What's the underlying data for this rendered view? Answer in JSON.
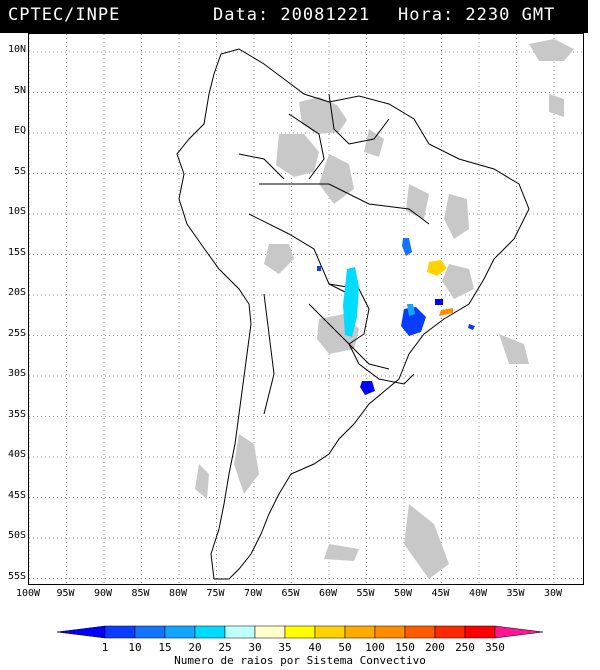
{
  "header": {
    "source": "CPTEC/INPE",
    "date_text": "Data: 20081221",
    "hour_text": "Hora: 2230 GMT"
  },
  "map": {
    "lat_labels": [
      "10N",
      "5N",
      "EQ",
      "5S",
      "10S",
      "15S",
      "20S",
      "25S",
      "30S",
      "35S",
      "40S",
      "45S",
      "50S",
      "55S"
    ],
    "lon_labels": [
      "100W",
      "95W",
      "90W",
      "85W",
      "80W",
      "75W",
      "70W",
      "65W",
      "60W",
      "55W",
      "50W",
      "45W",
      "40W",
      "35W",
      "30W"
    ],
    "colors": {
      "land_outline": "#000000",
      "cloud": "#c8c8c8",
      "grid": "#9a9a9a"
    }
  },
  "colorbar": {
    "ticks": [
      "1",
      "10",
      "15",
      "20",
      "25",
      "30",
      "35",
      "40",
      "50",
      "100",
      "150",
      "200",
      "250",
      "350"
    ],
    "colors": [
      "#0000ff",
      "#0a3cff",
      "#1473ff",
      "#14a5ff",
      "#00dcff",
      "#bfffff",
      "#ffffcc",
      "#ffff00",
      "#ffd200",
      "#ffaa00",
      "#ff8c00",
      "#ff5a00",
      "#ff2800",
      "#ff0000",
      "#ff1493"
    ],
    "title": "Numero de raios por Sistema Convectivo"
  },
  "lightning_systems": [
    {
      "name": "central-brazil",
      "color": "#00dcff",
      "count_class": "25"
    },
    {
      "name": "bahia",
      "color": "#ffd200",
      "count_class": "50"
    },
    {
      "name": "goias",
      "color": "#1473ff",
      "count_class": "15"
    },
    {
      "name": "sao-paulo",
      "color": "#0a3cff",
      "count_class": "10"
    },
    {
      "name": "rio",
      "color": "#ff8c00",
      "count_class": "150"
    },
    {
      "name": "rio-grande-do-sul",
      "color": "#0000ff",
      "count_class": "1"
    }
  ]
}
